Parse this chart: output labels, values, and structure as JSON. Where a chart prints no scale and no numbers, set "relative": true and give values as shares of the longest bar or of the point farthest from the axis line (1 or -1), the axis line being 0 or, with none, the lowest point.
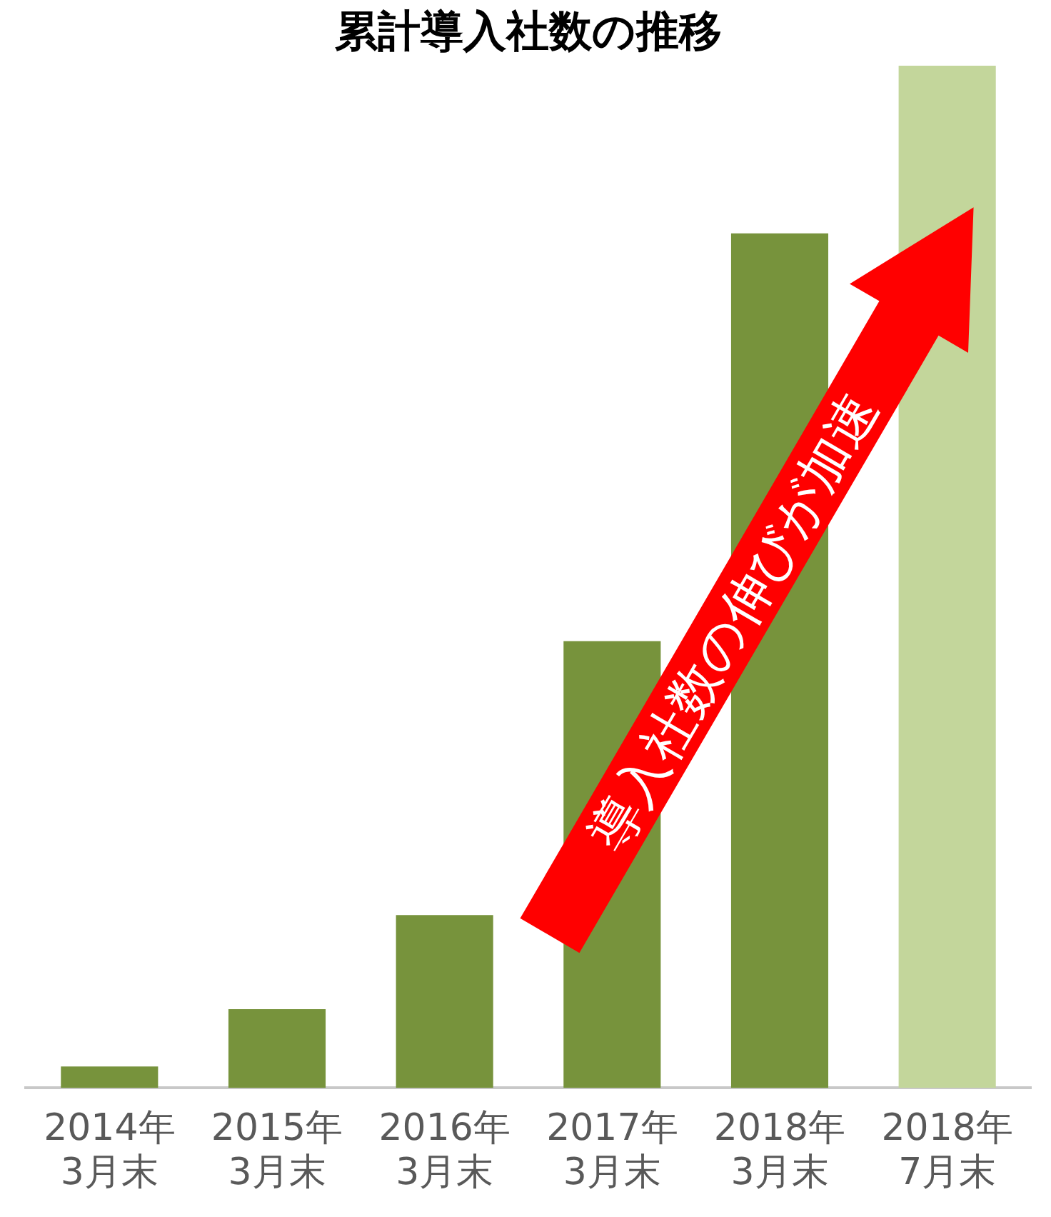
{
  "chart_data": {
    "type": "bar",
    "title": "累計導入社数の推移",
    "relative": true,
    "categories": [
      "2014年\n3月末",
      "2015年\n3月末",
      "2016年\n3月末",
      "2017年\n3月末",
      "2018年\n3月末",
      "2018年\n7月末"
    ],
    "values": [
      0.021,
      0.077,
      0.169,
      0.437,
      0.836,
      1
    ],
    "colors": [
      "#77933c",
      "#77933c",
      "#77933c",
      "#77933c",
      "#77933c",
      "#c3d69b"
    ],
    "grid": false,
    "legend": false,
    "annotations": [
      "導入社数の伸びが加速"
    ]
  }
}
